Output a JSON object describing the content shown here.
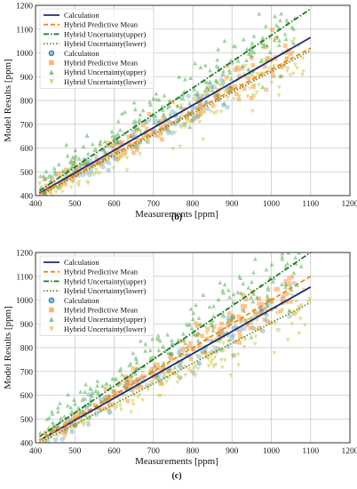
{
  "chart_data": [
    {
      "type": "scatter",
      "panel_label": "(b)",
      "xlabel": "Measurements [ppm]",
      "ylabel": "Model Results [ppm]",
      "xlim": [
        400,
        1200
      ],
      "ylim": [
        400,
        1200
      ],
      "xticks": [
        "400",
        "500",
        "600",
        "700",
        "800",
        "900",
        "1000",
        "1100",
        "1200"
      ],
      "yticks": [
        "400",
        "500",
        "600",
        "700",
        "800",
        "900",
        "1000",
        "1100",
        "1200"
      ],
      "grid": true,
      "legend_position": "upper-left",
      "lines": [
        {
          "name": "Calculation",
          "color": "#1f2a7a",
          "style": "solid",
          "x": [
            410,
            1100
          ],
          "y": [
            410,
            1065
          ]
        },
        {
          "name": "Hybrid Predictive Mean",
          "color": "#ff7f0e",
          "style": "dashed",
          "x": [
            410,
            1100
          ],
          "y": [
            407,
            1020
          ]
        },
        {
          "name": "Hybrid Uncertainty(upper)",
          "color": "#1a7a1a",
          "style": "dashdot",
          "x": [
            410,
            1100
          ],
          "y": [
            420,
            1185
          ]
        },
        {
          "name": "Hybrid Uncertainty(lower)",
          "color": "#6b8e23",
          "style": "dotted",
          "x": [
            410,
            1100
          ],
          "y": [
            400,
            1010
          ]
        }
      ],
      "scatter_series": [
        {
          "name": "Calculation",
          "marker": "circle",
          "color": "#1f77b4",
          "cloud": {
            "x_range": [
              420,
              900
            ],
            "slope": 0.95,
            "intercept": 10,
            "spread": 35,
            "count": 90
          }
        },
        {
          "name": "Hybrid Predictive Mean",
          "marker": "square",
          "color": "#ff7f0e",
          "cloud": {
            "x_range": [
              420,
              1050
            ],
            "slope": 0.93,
            "intercept": 30,
            "spread": 40,
            "count": 130
          }
        },
        {
          "name": "Hybrid Uncertainty(upper)",
          "marker": "triangle-up",
          "color": "#2ca02c",
          "cloud": {
            "x_range": [
              410,
              1060
            ],
            "slope": 1.02,
            "intercept": 25,
            "spread": 55,
            "count": 220
          }
        },
        {
          "name": "Hybrid Uncertainty(lower)",
          "marker": "triangle-down",
          "color": "#bcbd22",
          "cloud": {
            "x_range": [
              410,
              1100
            ],
            "slope": 0.9,
            "intercept": 20,
            "spread": 45,
            "count": 180
          }
        }
      ]
    },
    {
      "type": "scatter",
      "panel_label": "(c)",
      "xlabel": "Measurements [ppm]",
      "ylabel": "Model Results [ppm]",
      "xlim": [
        400,
        1200
      ],
      "ylim": [
        400,
        1200
      ],
      "xticks": [
        "400",
        "500",
        "600",
        "700",
        "800",
        "900",
        "1000",
        "1100",
        "1200"
      ],
      "yticks": [
        "400",
        "500",
        "600",
        "700",
        "800",
        "900",
        "1000",
        "1100",
        "1200"
      ],
      "grid": true,
      "legend_position": "upper-left",
      "lines": [
        {
          "name": "Calculation",
          "color": "#1f2a7a",
          "style": "solid",
          "x": [
            410,
            1100
          ],
          "y": [
            410,
            1055
          ]
        },
        {
          "name": "Hybrid Predictive Mean",
          "color": "#ff7f0e",
          "style": "dashed",
          "x": [
            410,
            1100
          ],
          "y": [
            410,
            1100
          ]
        },
        {
          "name": "Hybrid Uncertainty(upper)",
          "color": "#1a7a1a",
          "style": "dashdot",
          "x": [
            410,
            1100
          ],
          "y": [
            425,
            1200
          ]
        },
        {
          "name": "Hybrid Uncertainty(lower)",
          "color": "#6b8e23",
          "style": "dotted",
          "x": [
            410,
            1100
          ],
          "y": [
            400,
            990
          ]
        }
      ],
      "scatter_series": [
        {
          "name": "Calculation",
          "marker": "circle",
          "color": "#1f77b4",
          "cloud": {
            "x_range": [
              420,
              1060
            ],
            "slope": 0.95,
            "intercept": 10,
            "spread": 40,
            "count": 110
          }
        },
        {
          "name": "Hybrid Predictive Mean",
          "marker": "square",
          "color": "#ff7f0e",
          "cloud": {
            "x_range": [
              420,
              1060
            ],
            "slope": 0.97,
            "intercept": 20,
            "spread": 40,
            "count": 140
          }
        },
        {
          "name": "Hybrid Uncertainty(upper)",
          "marker": "triangle-up",
          "color": "#2ca02c",
          "cloud": {
            "x_range": [
              410,
              1080
            ],
            "slope": 1.05,
            "intercept": 20,
            "spread": 60,
            "count": 220
          }
        },
        {
          "name": "Hybrid Uncertainty(lower)",
          "marker": "triangle-down",
          "color": "#bcbd22",
          "cloud": {
            "x_range": [
              410,
              1100
            ],
            "slope": 0.88,
            "intercept": 30,
            "spread": 45,
            "count": 180
          }
        }
      ]
    }
  ]
}
